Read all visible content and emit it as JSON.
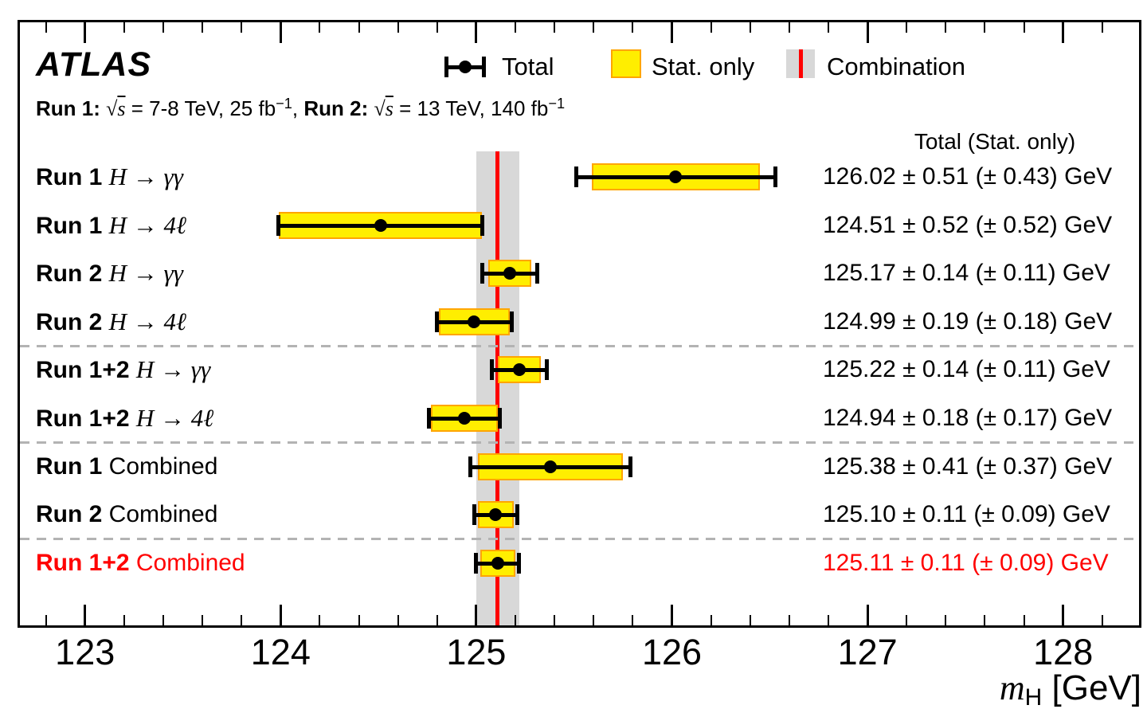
{
  "title": "ATLAS",
  "subtitle_segments": [
    {
      "text": "Run 1: ",
      "style": "bold"
    },
    {
      "text": "√s",
      "style": "sqrt"
    },
    {
      "text": " = 7-8 TeV, 25 fb",
      "style": "normal"
    },
    {
      "text": "−1",
      "style": "sup"
    },
    {
      "text": ", ",
      "style": "normal"
    },
    {
      "text": "Run 2: ",
      "style": "bold"
    },
    {
      "text": "√s",
      "style": "sqrt"
    },
    {
      "text": " = 13 TeV, 140 fb",
      "style": "normal"
    },
    {
      "text": "−1",
      "style": "sup"
    }
  ],
  "legend": {
    "total_label": "Total",
    "stat_label": "Stat. only",
    "combination_label": "Combination"
  },
  "column_header": "Total  (Stat. only)",
  "colors": {
    "stat_fill": "#ffee00",
    "stat_border": "#ffa500",
    "combination_band": "#d8d8d8",
    "combination_line": "#ff0000",
    "highlight_text": "#ff0000",
    "separator": "#b3b3b3",
    "marker": "#000000"
  },
  "chart_data": {
    "type": "scatter",
    "subtype": "horizontal-errorbar-summary",
    "title": "ATLAS Higgs boson mass measurements",
    "xlabel_segments": [
      {
        "text": "m",
        "style": "italic"
      },
      {
        "text": "H",
        "style": "sub"
      },
      {
        "text": " [GeV]",
        "style": "normal"
      }
    ],
    "xlim": [
      122.65,
      128.4
    ],
    "x_major_ticks": [
      123,
      124,
      125,
      126,
      127,
      128
    ],
    "x_minor_step": 0.2,
    "grid": false,
    "combination": {
      "value": 125.11,
      "err_total": 0.11,
      "err_stat": 0.09,
      "band_lo": 125.0,
      "band_hi": 125.22
    },
    "rows": [
      {
        "run": "Run 1",
        "channel": "H → γγ",
        "math": true,
        "value": 126.02,
        "err_total": 0.51,
        "err_stat": 0.43,
        "result": "126.02 ± 0.51 (± 0.43) GeV",
        "highlight": false
      },
      {
        "run": "Run 1",
        "channel": "H → 4ℓ",
        "math": true,
        "value": 124.51,
        "err_total": 0.52,
        "err_stat": 0.52,
        "result": "124.51 ± 0.52 (± 0.52) GeV",
        "highlight": false
      },
      {
        "run": "Run 2",
        "channel": "H → γγ",
        "math": true,
        "value": 125.17,
        "err_total": 0.14,
        "err_stat": 0.11,
        "result": "125.17 ± 0.14 (± 0.11) GeV",
        "highlight": false
      },
      {
        "run": "Run 2",
        "channel": "H → 4ℓ",
        "math": true,
        "value": 124.99,
        "err_total": 0.19,
        "err_stat": 0.18,
        "result": "124.99 ± 0.19 (± 0.18) GeV",
        "highlight": false
      },
      {
        "run": "Run 1+2",
        "channel": "H → γγ",
        "math": true,
        "value": 125.22,
        "err_total": 0.14,
        "err_stat": 0.11,
        "result": "125.22 ± 0.14 (± 0.11) GeV",
        "highlight": false
      },
      {
        "run": "Run 1+2",
        "channel": "H → 4ℓ",
        "math": true,
        "value": 124.94,
        "err_total": 0.18,
        "err_stat": 0.17,
        "result": "124.94 ± 0.18 (± 0.17) GeV",
        "highlight": false
      },
      {
        "run": "Run 1",
        "channel": "Combined",
        "math": false,
        "value": 125.38,
        "err_total": 0.41,
        "err_stat": 0.37,
        "result": "125.38 ± 0.41 (± 0.37) GeV",
        "highlight": false
      },
      {
        "run": "Run 2",
        "channel": "Combined",
        "math": false,
        "value": 125.1,
        "err_total": 0.11,
        "err_stat": 0.09,
        "result": "125.10 ± 0.11 (± 0.09) GeV",
        "highlight": false
      },
      {
        "run": "Run 1+2",
        "channel": "Combined",
        "math": false,
        "value": 125.11,
        "err_total": 0.11,
        "err_stat": 0.09,
        "result": "125.11 ± 0.11 (± 0.09) GeV",
        "highlight": true
      }
    ],
    "separators_after_row": [
      3,
      5,
      7
    ],
    "legend_entries": [
      "Total",
      "Stat. only",
      "Combination"
    ],
    "legend_position": "top"
  }
}
